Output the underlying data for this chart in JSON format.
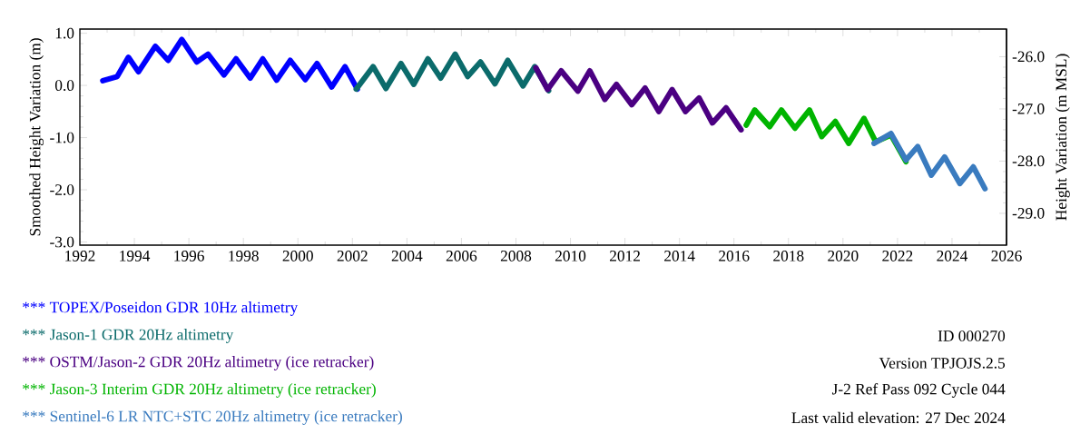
{
  "chart_data": {
    "type": "line",
    "ylabel": "Smoothed Height Variation (m)",
    "y2label": "Height Variation (m MSL)",
    "xlim": [
      1992,
      2026
    ],
    "xticks": [
      1992,
      1994,
      1996,
      1998,
      2000,
      2002,
      2004,
      2006,
      2008,
      2010,
      2012,
      2014,
      2016,
      2018,
      2020,
      2022,
      2024,
      2026
    ],
    "ylim": [
      -3.06,
      1.08
    ],
    "yticks": [
      {
        "value": 1,
        "label": "1.0"
      },
      {
        "value": 0,
        "label": "0.0"
      },
      {
        "value": -1,
        "label": "-1.0"
      },
      {
        "value": -2,
        "label": "-2.0"
      },
      {
        "value": -3,
        "label": "-3.0"
      }
    ],
    "y2lim": [
      -29.61,
      -25.47
    ],
    "y2ticks": [
      {
        "value": -26,
        "label": "-26.0"
      },
      {
        "value": -27,
        "label": "-27.0"
      },
      {
        "value": -28,
        "label": "-28.0"
      },
      {
        "value": -29,
        "label": "-29.0"
      }
    ],
    "legend": "bottom",
    "series": [
      {
        "name": "*** TOPEX/Poseidon GDR 10Hz altimetry",
        "color": "#0000ff",
        "x": [
          1992.84,
          1993.37,
          1993.78,
          1994.15,
          1994.77,
          1995.24,
          1995.74,
          1996.29,
          1996.7,
          1997.29,
          1997.73,
          1998.25,
          1998.71,
          1999.22,
          1999.72,
          2000.27,
          2000.7,
          2001.24,
          2001.73,
          2002.18
        ],
        "values": [
          0.09,
          0.17,
          0.54,
          0.26,
          0.75,
          0.48,
          0.88,
          0.45,
          0.6,
          0.2,
          0.51,
          0.14,
          0.51,
          0.1,
          0.48,
          0.11,
          0.42,
          -0.03,
          0.36,
          -0.07
        ]
      },
      {
        "name": "*** Jason-1 GDR 20Hz altimetry",
        "color": "#0b6b6b",
        "x": [
          2002.14,
          2002.76,
          2003.23,
          2003.78,
          2004.25,
          2004.77,
          2005.24,
          2005.77,
          2006.23,
          2006.7,
          2007.23,
          2007.7,
          2008.26,
          2008.69,
          2009.2
        ],
        "values": [
          -0.07,
          0.36,
          -0.06,
          0.42,
          0.02,
          0.51,
          0.14,
          0.6,
          0.17,
          0.45,
          0.03,
          0.48,
          -0.01,
          0.36,
          -0.1
        ]
      },
      {
        "name": "*** OSTM/Jason-2 GDR 20Hz altimetry (ice retracker)",
        "color": "#4b0082",
        "x": [
          2008.73,
          2009.16,
          2009.66,
          2010.27,
          2010.71,
          2011.26,
          2011.69,
          2012.25,
          2012.74,
          2013.24,
          2013.73,
          2014.22,
          2014.72,
          2015.21,
          2015.71,
          2016.26
        ],
        "values": [
          0.34,
          -0.08,
          0.28,
          -0.11,
          0.28,
          -0.27,
          0.02,
          -0.37,
          -0.05,
          -0.5,
          -0.08,
          -0.5,
          -0.24,
          -0.72,
          -0.43,
          -0.85
        ]
      },
      {
        "name": "*** Jason-3 Interim GDR 20Hz altimetry (ice retracker)",
        "color": "#00b400",
        "x": [
          2016.45,
          2016.76,
          2017.31,
          2017.74,
          2018.24,
          2018.77,
          2019.22,
          2019.72,
          2020.21,
          2020.77,
          2021.2,
          2021.76,
          2022.31
        ],
        "values": [
          -0.76,
          -0.47,
          -0.79,
          -0.47,
          -0.82,
          -0.47,
          -0.98,
          -0.69,
          -1.11,
          -0.63,
          -1.08,
          -0.95,
          -1.46
        ]
      },
      {
        "name": "*** Sentinel-6 LR NTC+STC 20Hz altimetry (ice retracker)",
        "color": "#3a7bbf",
        "x": [
          2021.14,
          2021.76,
          2022.31,
          2022.74,
          2023.24,
          2023.73,
          2024.29,
          2024.78,
          2025.21
        ],
        "values": [
          -1.11,
          -0.92,
          -1.43,
          -1.17,
          -1.72,
          -1.37,
          -1.88,
          -1.56,
          -1.98
        ]
      }
    ],
    "annotations": [
      "ID 000270",
      "Version TPJOJS.2.5",
      "J-2 Ref Pass 092 Cycle 044",
      "Last valid elevation: 27 Dec 2024"
    ]
  }
}
